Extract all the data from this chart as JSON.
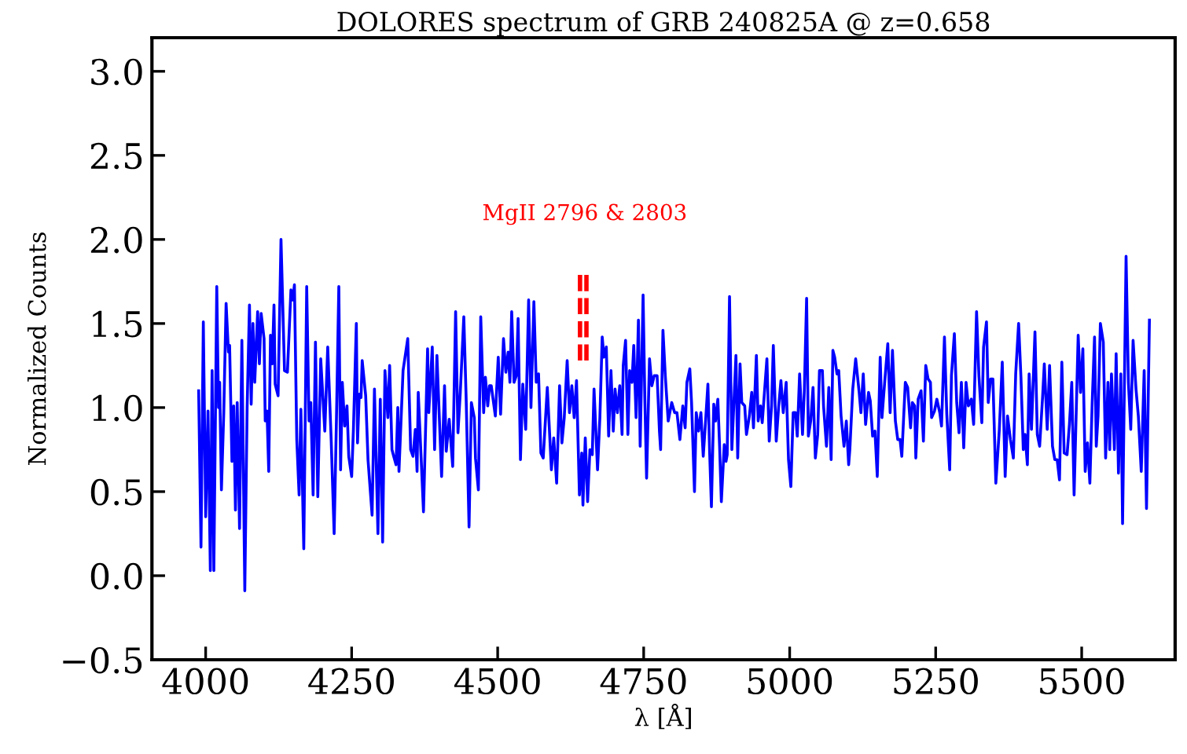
{
  "chart_data": {
    "type": "line",
    "title": "DOLORES spectrum of GRB 240825A @ z=0.658",
    "xlabel": "λ [Å]",
    "ylabel": "Normalized Counts",
    "xlim": [
      3908,
      5660
    ],
    "ylim": [
      -0.5,
      3.2
    ],
    "xticks": [
      4000,
      4250,
      4500,
      4750,
      5000,
      5250,
      5500
    ],
    "yticks": [
      {
        "value": -0.5,
        "label": "−0.5"
      },
      {
        "value": 0,
        "label": "0.0"
      },
      0.5,
      {
        "value": 1,
        "label": "1.0"
      },
      1.5,
      {
        "value": 2,
        "label": "2.0"
      },
      2.5,
      {
        "value": 3,
        "label": "3.0"
      }
    ],
    "grid": false,
    "legend": false,
    "marker": "none",
    "annotations": [
      "MgII 2796 & 2803"
    ],
    "series": [
      {
        "color": "#0000ff",
        "line_style": "solid",
        "x": [
          3988,
          3992,
          3996,
          4000,
          4004,
          4008,
          4011,
          4014,
          4019,
          4022,
          4024,
          4027,
          4031,
          4035,
          4039,
          4041,
          4045,
          4048,
          4051,
          4054,
          4058,
          4062,
          4067,
          4071,
          4075,
          4078,
          4081,
          4084,
          4089,
          4092,
          4095,
          4100,
          4102,
          4105,
          4108,
          4111,
          4114,
          4117,
          4119,
          4124,
          4129,
          4135,
          4140,
          4146,
          4149,
          4152,
          4156,
          4160,
          4163,
          4168,
          4173,
          4177,
          4180,
          4184,
          4188,
          4192,
          4197,
          4204,
          4209,
          4215,
          4220,
          4224,
          4228,
          4231,
          4234,
          4238,
          4242,
          4245,
          4250,
          4253,
          4258,
          4260,
          4263,
          4266,
          4268,
          4274,
          4278,
          4285,
          4289,
          4295,
          4299,
          4303,
          4307,
          4312,
          4315,
          4319,
          4322,
          4326,
          4329,
          4331,
          4338,
          4346,
          4351,
          4355,
          4359,
          4362,
          4364,
          4373,
          4380,
          4382,
          4388,
          4392,
          4396,
          4404,
          4409,
          4412,
          4417,
          4423,
          4428,
          4432,
          4436,
          4442,
          4446,
          4451,
          4455,
          4460,
          4462,
          4467,
          4471,
          4476,
          4479,
          4483,
          4486,
          4489,
          4496,
          4501,
          4505,
          4510,
          4514,
          4518,
          4521,
          4524,
          4528,
          4532,
          4535,
          4539,
          4543,
          4548,
          4553,
          4557,
          4562,
          4566,
          4570,
          4574,
          4578,
          4585,
          4592,
          4596,
          4601,
          4606,
          4610,
          4614,
          4619,
          4623,
          4627,
          4631,
          4635,
          4640,
          4644,
          4646,
          4650,
          4654,
          4658,
          4662,
          4665,
          4671,
          4675,
          4679,
          4682,
          4686,
          4690,
          4694,
          4698,
          4701,
          4705,
          4709,
          4713,
          4715,
          4719,
          4723,
          4726,
          4730,
          4733,
          4737,
          4741,
          4744,
          4749,
          4752,
          4755,
          4760,
          4764,
          4768,
          4773,
          4777,
          4779,
          4783,
          4787,
          4792,
          4798,
          4803,
          4807,
          4812,
          4817,
          4821,
          4824,
          4829,
          4832,
          4837,
          4840,
          4844,
          4848,
          4852,
          4856,
          4860,
          4863,
          4866,
          4870,
          4873,
          4877,
          4880,
          4883,
          4888,
          4891,
          4893,
          4897,
          4901,
          4908,
          4911,
          4915,
          4918,
          4923,
          4926,
          4931,
          4935,
          4938,
          4943,
          4946,
          4950,
          4953,
          4961,
          4965,
          4969,
          4972,
          4977,
          4981,
          4985,
          4989,
          4994,
          4998,
          5002,
          5006,
          5010,
          5013,
          5017,
          5022,
          5025,
          5029,
          5032,
          5036,
          5040,
          5044,
          5048,
          5051,
          5056,
          5058,
          5063,
          5067,
          5071,
          5074,
          5077,
          5081,
          5084,
          5088,
          5093,
          5097,
          5101,
          5103,
          5108,
          5113,
          5119,
          5122,
          5126,
          5130,
          5135,
          5138,
          5142,
          5146,
          5150,
          5155,
          5158,
          5162,
          5168,
          5172,
          5176,
          5181,
          5185,
          5189,
          5192,
          5198,
          5202,
          5207,
          5210,
          5214,
          5216,
          5220,
          5225,
          5229,
          5233,
          5237,
          5241,
          5243,
          5248,
          5252,
          5257,
          5260,
          5265,
          5269,
          5274,
          5277,
          5282,
          5286,
          5290,
          5294,
          5298,
          5302,
          5306,
          5311,
          5315,
          5320,
          5324,
          5329,
          5332,
          5337,
          5340,
          5344,
          5348,
          5353,
          5359,
          5364,
          5369,
          5373,
          5378,
          5383,
          5387,
          5392,
          5396,
          5400,
          5403,
          5407,
          5410,
          5414,
          5420,
          5424,
          5428,
          5433,
          5436,
          5441,
          5445,
          5450,
          5454,
          5458,
          5462,
          5466,
          5470,
          5475,
          5479,
          5483,
          5487,
          5494,
          5498,
          5502,
          5506,
          5510,
          5514,
          5518,
          5522,
          5525,
          5528,
          5532,
          5537,
          5541,
          5545,
          5548,
          5551,
          5556,
          5559,
          5563,
          5567,
          5570,
          5576,
          5580,
          5584,
          5588,
          5593,
          5597,
          5602,
          5607,
          5611,
          5616
        ],
        "values": [
          1.1,
          0.17,
          1.51,
          0.35,
          0.98,
          0.03,
          1.22,
          0.03,
          1.72,
          1.0,
          1.15,
          0.51,
          0.97,
          1.62,
          1.33,
          1.37,
          0.68,
          1.01,
          0.39,
          1.03,
          0.28,
          1.4,
          -0.09,
          1.0,
          1.61,
          1.02,
          1.5,
          1.15,
          1.57,
          1.26,
          1.56,
          1.41,
          0.92,
          0.98,
          0.62,
          1.43,
          1.26,
          1.61,
          1.14,
          1.07,
          2.0,
          1.22,
          1.21,
          1.7,
          1.64,
          1.73,
          0.81,
          0.48,
          0.99,
          0.16,
          1.72,
          0.92,
          1.03,
          0.48,
          1.39,
          0.47,
          1.29,
          0.86,
          1.36,
          0.8,
          0.25,
          0.94,
          1.72,
          0.63,
          1.15,
          0.89,
          1.01,
          0.71,
          0.59,
          0.87,
          1.5,
          0.79,
          1.08,
          1.06,
          1.28,
          1.07,
          0.69,
          0.36,
          1.11,
          0.25,
          1.05,
          0.2,
          1.22,
          0.94,
          1.25,
          0.75,
          0.71,
          0.66,
          1.0,
          0.62,
          1.22,
          1.41,
          0.75,
          0.71,
          0.87,
          0.62,
          1.09,
          0.38,
          1.35,
          0.97,
          1.36,
          0.75,
          1.31,
          0.59,
          1.13,
          0.74,
          0.93,
          0.65,
          1.57,
          0.85,
          1.09,
          1.54,
          1.06,
          0.29,
          1.03,
          0.94,
          0.7,
          0.51,
          1.54,
          0.97,
          1.18,
          1.01,
          1.13,
          1.13,
          0.95,
          1.3,
          0.96,
          1.41,
          1.21,
          1.33,
          1.15,
          1.57,
          1.15,
          1.19,
          1.53,
          0.69,
          1.14,
          0.87,
          1.64,
          1.0,
          1.63,
          1.15,
          1.2,
          0.73,
          0.7,
          1.12,
          0.63,
          0.82,
          0.55,
          1.13,
          0.79,
          0.94,
          1.28,
          0.97,
          1.13,
          0.94,
          1.16,
          0.48,
          0.73,
          0.42,
          0.82,
          0.44,
          0.75,
          0.72,
          1.11,
          0.63,
          0.94,
          1.42,
          1.3,
          1.36,
          0.83,
          1.22,
          0.86,
          1.11,
          0.97,
          1.13,
          0.84,
          1.25,
          1.4,
          0.84,
          1.22,
          1.15,
          1.37,
          0.94,
          1.52,
          0.77,
          1.67,
          1.05,
          0.58,
          1.29,
          1.13,
          1.19,
          1.19,
          0.86,
          0.75,
          1.46,
          1.19,
          0.92,
          1.03,
          0.97,
          0.97,
          0.81,
          1.01,
          0.88,
          1.15,
          1.23,
          1.03,
          0.5,
          0.97,
          0.86,
          0.97,
          0.71,
          0.92,
          1.14,
          0.73,
          0.41,
          1.02,
          0.92,
          1.05,
          0.77,
          0.44,
          0.78,
          0.68,
          0.72,
          1.66,
          0.75,
          1.31,
          0.7,
          1.26,
          1.03,
          1.01,
          0.84,
          0.95,
          1.09,
          0.88,
          1.31,
          0.92,
          1.01,
          0.91,
          1.29,
          0.8,
          1.01,
          1.37,
          0.8,
          1.0,
          1.16,
          0.97,
          1.15,
          0.69,
          0.53,
          0.97,
          0.97,
          0.83,
          1.2,
          0.84,
          1.09,
          1.65,
          0.83,
          0.92,
          1.12,
          0.7,
          0.84,
          1.22,
          1.22,
          1.01,
          0.77,
          1.12,
          0.69,
          1.34,
          1.3,
          1.2,
          1.22,
          0.95,
          0.77,
          0.92,
          0.66,
          0.75,
          1.11,
          1.29,
          1.09,
          0.97,
          1.2,
          0.9,
          1.09,
          1.04,
          0.83,
          0.86,
          0.59,
          1.3,
          0.94,
          1.12,
          1.38,
          0.97,
          1.34,
          0.92,
          0.81,
          0.81,
          0.71,
          1.15,
          1.12,
          0.88,
          1.03,
          1.01,
          0.7,
          1.05,
          1.1,
          0.8,
          1.25,
          1.17,
          1.15,
          0.94,
          0.98,
          1.05,
          0.97,
          0.89,
          1.42,
          0.96,
          0.63,
          1.19,
          1.44,
          1.03,
          0.85,
          1.15,
          0.76,
          1.15,
          1.01,
          1.05,
          0.9,
          1.57,
          1.19,
          0.91,
          1.36,
          1.51,
          1.03,
          1.17,
          1.17,
          0.55,
          0.87,
          1.27,
          0.59,
          0.95,
          0.81,
          0.7,
          1.2,
          1.5,
          1.18,
          0.75,
          0.84,
          0.66,
          1.2,
          0.87,
          1.45,
          0.84,
          0.77,
          1.06,
          1.26,
          0.87,
          1.25,
          0.77,
          0.69,
          0.69,
          0.57,
          1.27,
          0.73,
          0.72,
          0.9,
          1.15,
          0.48,
          1.43,
          1.09,
          1.35,
          0.62,
          0.79,
          0.55,
          1.03,
          1.42,
          0.77,
          0.95,
          1.5,
          1.39,
          0.7,
          1.15,
          0.75,
          1.2,
          0.75,
          1.32,
          0.61,
          1.2,
          0.31,
          1.9,
          1.15,
          0.87,
          1.4,
          1.11,
          0.95,
          0.62,
          1.22,
          0.4,
          1.52
        ]
      },
      {
        "color": "#ff0000",
        "line_style": "dashed",
        "x": [
          4641,
          4641
        ],
        "values": [
          1.28,
          1.82
        ]
      },
      {
        "color": "#ff0000",
        "line_style": "dashed",
        "x": [
          4652,
          4652
        ],
        "values": [
          1.28,
          1.82
        ]
      }
    ]
  }
}
